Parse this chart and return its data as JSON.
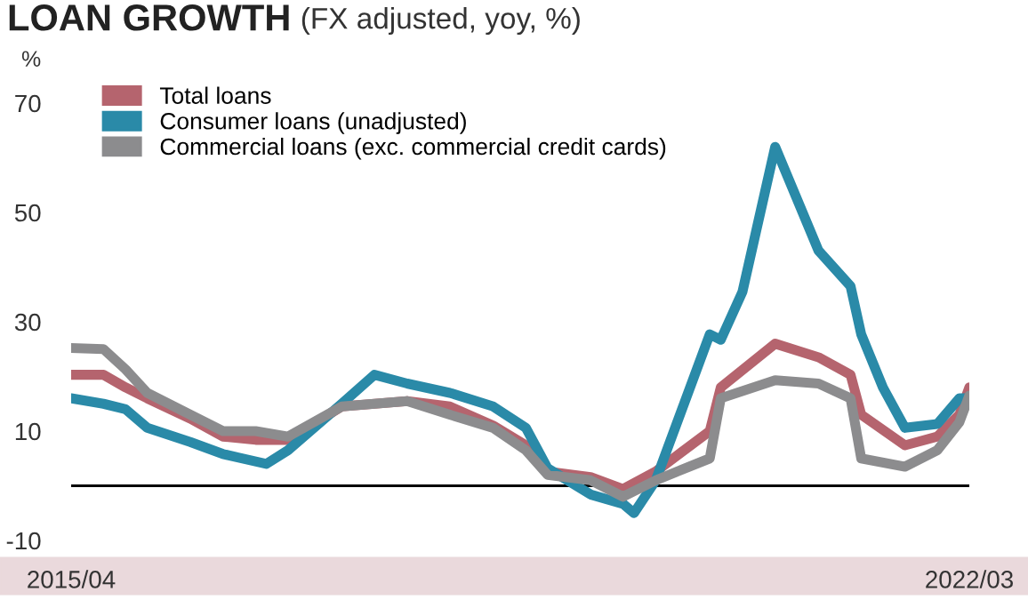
{
  "chart_data": {
    "type": "line",
    "title": "LOAN GROWTH",
    "subtitle": "(FX adjusted, yoy, %)",
    "ylabel": "%",
    "x": [
      "2015-04",
      "2015-07",
      "2015-09",
      "2015-11",
      "2016-03",
      "2016-06",
      "2016-09",
      "2016-12",
      "2017-05",
      "2017-11",
      "2018-03",
      "2018-07",
      "2018-10",
      "2018-12",
      "2019-04",
      "2019-07",
      "2019-10",
      "2020-03",
      "2020-04",
      "2020-09",
      "2021-01",
      "2021-04",
      "2021-05",
      "2021-09",
      "2021-12",
      "2022-02",
      "2022-03"
    ],
    "series": [
      {
        "name": "Total loans",
        "color": "#b5646e",
        "values": [
          20.3,
          20.3,
          18,
          16,
          12.3,
          9,
          8.4,
          8.4,
          14.5,
          15.5,
          14.5,
          11,
          7.4,
          2.6,
          1.6,
          -0.6,
          2.6,
          10,
          18,
          26,
          23.5,
          20.3,
          13,
          7.4,
          9,
          13,
          18
        ]
      },
      {
        "name": "Consumer loans (unadjusted)",
        "color": "#2a8aa8",
        "x": [
          "2015-04",
          "2015-07",
          "2015-09",
          "2015-11",
          "2016-03",
          "2016-06",
          "2016-10",
          "2016-12",
          "2017-05",
          "2017-08",
          "2017-11",
          "2018-03",
          "2018-07",
          "2018-10",
          "2018-12",
          "2019-04",
          "2019-07",
          "2019-08",
          "2019-10",
          "2020-03",
          "2020-04",
          "2020-06",
          "2020-09",
          "2021-01",
          "2021-04",
          "2021-05",
          "2021-07",
          "2021-09",
          "2021-12",
          "2022-02",
          "2022-03"
        ],
        "values": [
          16,
          15,
          14,
          10.6,
          8,
          5.8,
          4,
          6.5,
          15,
          20.3,
          18.7,
          17,
          14.5,
          10.6,
          3.2,
          -1.6,
          -3.3,
          -5,
          1,
          27.7,
          26.7,
          35.5,
          62,
          43,
          36.5,
          27.7,
          18,
          10.6,
          11.3,
          16,
          16
        ]
      },
      {
        "name": "Commercial loans (exc. commercial credit cards)",
        "color": "#8c8c8e",
        "values": [
          25.2,
          25,
          21.3,
          17,
          13,
          10,
          10,
          9,
          14.5,
          15.5,
          13,
          10.6,
          6.5,
          2,
          1,
          -2,
          1,
          5,
          16,
          19.3,
          18.7,
          16,
          5,
          3.5,
          6.5,
          11.6,
          16.5
        ]
      }
    ],
    "ylim": [
      -10,
      70
    ],
    "yticks": [
      -10,
      10,
      30,
      50,
      70
    ],
    "xlim": [
      "2015-04",
      "2022-03"
    ],
    "xticks": [
      {
        "value": "2015-04",
        "label": "2015/04"
      },
      {
        "value": "2022-03",
        "label": "2022/03"
      }
    ],
    "ref_lines": [
      {
        "axis": "y",
        "value": 0,
        "label": null,
        "color": "#000000"
      }
    ],
    "legend": "top left",
    "grid": false,
    "line_style": "solid",
    "marker": "none"
  }
}
